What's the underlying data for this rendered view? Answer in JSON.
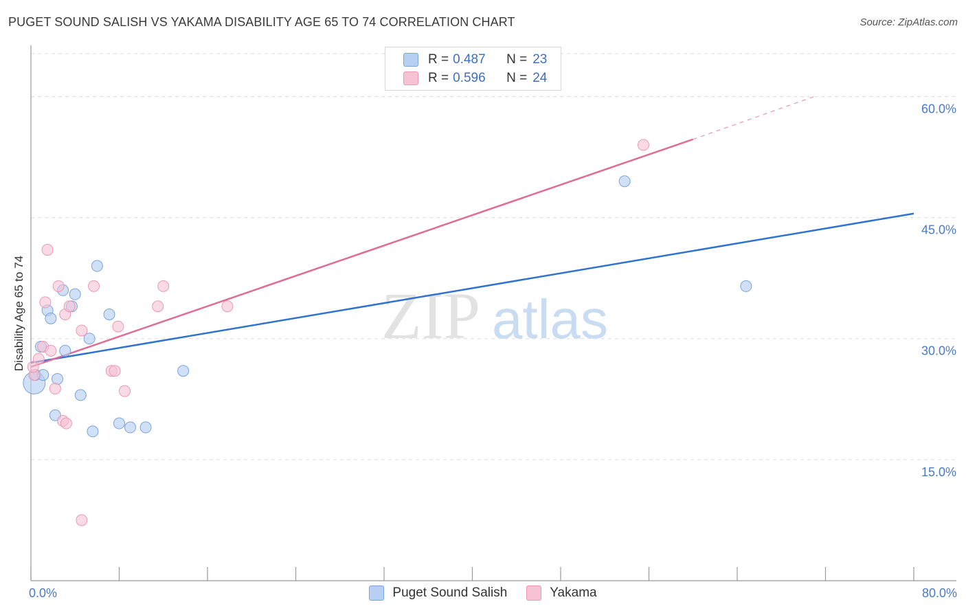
{
  "header": {
    "title": "PUGET SOUND SALISH VS YAKAMA DISABILITY AGE 65 TO 74 CORRELATION CHART",
    "source": "Source: ZipAtlas.com"
  },
  "watermark": {
    "zip": "ZIP",
    "atlas": "atlas"
  },
  "legend": {
    "rows": [
      {
        "r_label": "R =",
        "r_value": "0.487",
        "n_label": "N =",
        "n_value": "23"
      },
      {
        "r_label": "R =",
        "r_value": "0.596",
        "n_label": "N =",
        "n_value": "24"
      }
    ]
  },
  "bottom_legend": {
    "items": [
      "Puget Sound Salish",
      "Yakama"
    ]
  },
  "colors": {
    "blue_fill": "#b7cff3",
    "blue_stroke": "#7aa3e0",
    "blue_line": "#2e72d2",
    "pink_fill": "#f7c2d3",
    "pink_stroke": "#ec98b3",
    "pink_line": "#e06b96",
    "grid": "#dddddd",
    "axis_tick": "#4a7ac8"
  },
  "chart_data": {
    "type": "scatter",
    "title": "PUGET SOUND SALISH VS YAKAMA DISABILITY AGE 65 TO 74 CORRELATION CHART",
    "xlabel": "",
    "ylabel": "Disability Age 65 to 74",
    "xlim": [
      0,
      80
    ],
    "ylim": [
      0,
      66
    ],
    "x_tick_labels": [
      "0.0%",
      "80.0%"
    ],
    "y_ticks": [
      15,
      30,
      45,
      60
    ],
    "y_tick_labels": [
      "15.0%",
      "30.0%",
      "45.0%",
      "60.0%"
    ],
    "grid": true,
    "series": [
      {
        "name": "Puget Sound Salish",
        "r": 0.487,
        "n": 23,
        "points": [
          [
            0.3,
            24.5
          ],
          [
            0.4,
            25.5
          ],
          [
            0.9,
            29.0
          ],
          [
            1.1,
            25.5
          ],
          [
            1.5,
            33.5
          ],
          [
            1.8,
            32.5
          ],
          [
            2.2,
            20.5
          ],
          [
            2.4,
            25.0
          ],
          [
            2.9,
            36.0
          ],
          [
            3.1,
            28.5
          ],
          [
            3.7,
            34.0
          ],
          [
            4.0,
            35.5
          ],
          [
            4.5,
            23.0
          ],
          [
            5.3,
            30.0
          ],
          [
            5.6,
            18.5
          ],
          [
            6.0,
            39.0
          ],
          [
            7.1,
            33.0
          ],
          [
            8.0,
            19.5
          ],
          [
            9.0,
            19.0
          ],
          [
            10.4,
            19.0
          ],
          [
            13.8,
            26.0
          ],
          [
            53.8,
            49.5
          ],
          [
            64.8,
            36.5
          ]
        ],
        "trend": {
          "x": [
            0,
            80
          ],
          "y": [
            27.0,
            45.5
          ]
        }
      },
      {
        "name": "Yakama",
        "r": 0.596,
        "n": 24,
        "points": [
          [
            0.3,
            25.5
          ],
          [
            0.7,
            27.5
          ],
          [
            1.1,
            29.0
          ],
          [
            1.3,
            34.5
          ],
          [
            1.5,
            41.0
          ],
          [
            1.8,
            28.5
          ],
          [
            2.2,
            23.8
          ],
          [
            2.5,
            36.5
          ],
          [
            2.9,
            19.8
          ],
          [
            3.1,
            33.0
          ],
          [
            3.2,
            19.5
          ],
          [
            3.5,
            34.0
          ],
          [
            4.6,
            7.5
          ],
          [
            4.6,
            31.0
          ],
          [
            5.7,
            36.5
          ],
          [
            7.3,
            26.0
          ],
          [
            7.6,
            26.0
          ],
          [
            7.9,
            31.5
          ],
          [
            8.5,
            23.5
          ],
          [
            11.5,
            34.0
          ],
          [
            12.0,
            36.5
          ],
          [
            17.8,
            34.0
          ],
          [
            55.5,
            54.0
          ],
          [
            0.2,
            26.5
          ]
        ],
        "trend": {
          "x": [
            0,
            60
          ],
          "y": [
            26.5,
            54.7
          ]
        },
        "trend_dashed": {
          "x": [
            60,
            71
          ],
          "y": [
            54.7,
            60.0
          ]
        }
      }
    ]
  }
}
